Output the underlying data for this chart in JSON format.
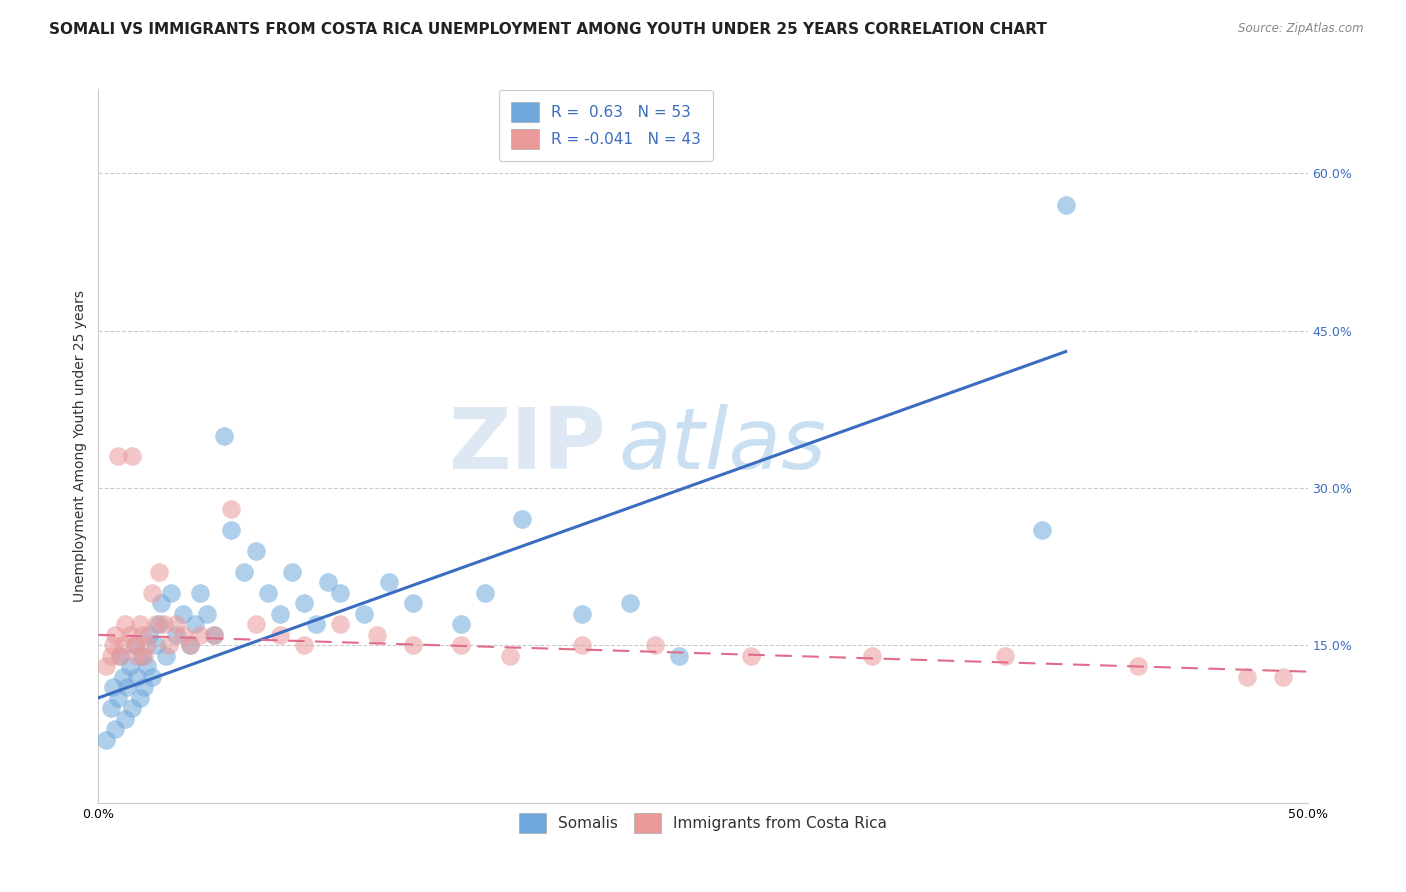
{
  "title": "SOMALI VS IMMIGRANTS FROM COSTA RICA UNEMPLOYMENT AMONG YOUTH UNDER 25 YEARS CORRELATION CHART",
  "source": "Source: ZipAtlas.com",
  "ylabel": "Unemployment Among Youth under 25 years",
  "xlim": [
    0.0,
    0.5
  ],
  "ylim": [
    0.0,
    0.68
  ],
  "xticks": [
    0.0,
    0.1,
    0.2,
    0.3,
    0.4,
    0.5
  ],
  "xtick_labels": [
    "0.0%",
    "",
    "",
    "",
    "",
    "50.0%"
  ],
  "yticks_right": [
    0.15,
    0.3,
    0.45,
    0.6
  ],
  "ytick_right_labels": [
    "15.0%",
    "30.0%",
    "45.0%",
    "60.0%"
  ],
  "somali_color": "#6fa8dc",
  "costarica_color": "#ea9999",
  "somali_R": 0.63,
  "somali_N": 53,
  "costarica_R": -0.041,
  "costarica_N": 43,
  "somali_x": [
    0.003,
    0.005,
    0.006,
    0.007,
    0.008,
    0.009,
    0.01,
    0.011,
    0.012,
    0.013,
    0.014,
    0.015,
    0.016,
    0.017,
    0.018,
    0.019,
    0.02,
    0.021,
    0.022,
    0.024,
    0.025,
    0.026,
    0.028,
    0.03,
    0.032,
    0.035,
    0.038,
    0.04,
    0.042,
    0.045,
    0.048,
    0.052,
    0.055,
    0.06,
    0.065,
    0.07,
    0.075,
    0.08,
    0.085,
    0.09,
    0.095,
    0.1,
    0.11,
    0.12,
    0.13,
    0.15,
    0.16,
    0.175,
    0.2,
    0.22,
    0.24,
    0.39,
    0.4
  ],
  "somali_y": [
    0.06,
    0.09,
    0.11,
    0.07,
    0.1,
    0.14,
    0.12,
    0.08,
    0.11,
    0.13,
    0.09,
    0.15,
    0.12,
    0.1,
    0.14,
    0.11,
    0.13,
    0.16,
    0.12,
    0.15,
    0.17,
    0.19,
    0.14,
    0.2,
    0.16,
    0.18,
    0.15,
    0.17,
    0.2,
    0.18,
    0.16,
    0.35,
    0.26,
    0.22,
    0.24,
    0.2,
    0.18,
    0.22,
    0.19,
    0.17,
    0.21,
    0.2,
    0.18,
    0.21,
    0.19,
    0.17,
    0.2,
    0.27,
    0.18,
    0.19,
    0.14,
    0.26,
    0.57
  ],
  "costarica_x": [
    0.003,
    0.005,
    0.006,
    0.007,
    0.008,
    0.009,
    0.01,
    0.011,
    0.013,
    0.014,
    0.015,
    0.016,
    0.017,
    0.018,
    0.019,
    0.02,
    0.022,
    0.024,
    0.025,
    0.027,
    0.029,
    0.032,
    0.035,
    0.038,
    0.042,
    0.048,
    0.055,
    0.065,
    0.075,
    0.085,
    0.1,
    0.115,
    0.13,
    0.15,
    0.17,
    0.2,
    0.23,
    0.27,
    0.32,
    0.375,
    0.43,
    0.475,
    0.49
  ],
  "costarica_y": [
    0.13,
    0.14,
    0.15,
    0.16,
    0.33,
    0.14,
    0.15,
    0.17,
    0.16,
    0.33,
    0.15,
    0.14,
    0.17,
    0.16,
    0.14,
    0.15,
    0.2,
    0.17,
    0.22,
    0.17,
    0.15,
    0.17,
    0.16,
    0.15,
    0.16,
    0.16,
    0.28,
    0.17,
    0.16,
    0.15,
    0.17,
    0.16,
    0.15,
    0.15,
    0.14,
    0.15,
    0.15,
    0.14,
    0.14,
    0.14,
    0.13,
    0.12,
    0.12
  ],
  "blue_line_x": [
    0.0,
    0.4
  ],
  "blue_line_y": [
    0.1,
    0.43
  ],
  "pink_line_x": [
    0.0,
    0.5
  ],
  "pink_line_y": [
    0.16,
    0.125
  ],
  "background_color": "#ffffff",
  "grid_color": "#cccccc",
  "title_fontsize": 11,
  "axis_label_fontsize": 10,
  "tick_fontsize": 9,
  "legend_fontsize": 11
}
